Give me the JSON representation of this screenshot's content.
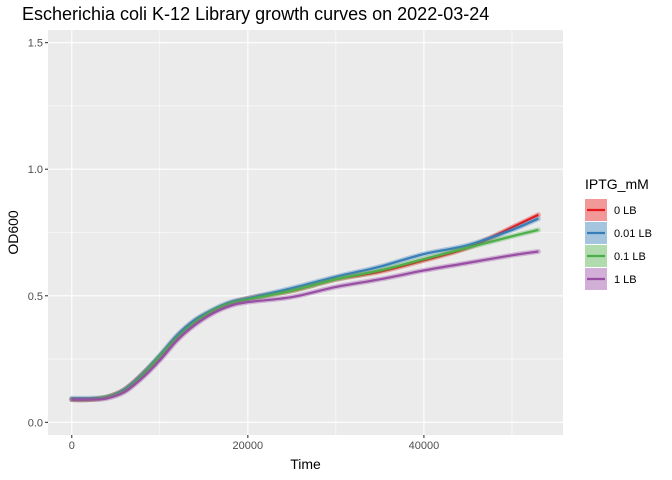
{
  "chart_data": {
    "type": "line",
    "title": "Escherichia coli K-12 Library growth curves on 2022-03-24",
    "xlabel": "Time",
    "ylabel": "OD600",
    "xlim": [
      -2700,
      55800
    ],
    "ylim": [
      -0.05,
      1.55
    ],
    "xticks": [
      0,
      20000,
      40000
    ],
    "xtick_labels": [
      "0",
      "20000",
      "40000"
    ],
    "yticks": [
      0.0,
      0.5,
      1.0,
      1.5
    ],
    "ytick_labels": [
      "0.0",
      "0.5",
      "1.0",
      "1.5"
    ],
    "grid": true,
    "legend": {
      "title": "IPTG_mM",
      "position": "right"
    },
    "x": [
      0,
      2000,
      4000,
      6000,
      8000,
      10000,
      12000,
      14000,
      16000,
      18000,
      20000,
      25000,
      30000,
      35000,
      40000,
      45000,
      50000,
      53000
    ],
    "series": [
      {
        "name": "0 LB",
        "color": "#e41a1c",
        "values": [
          0.09,
          0.09,
          0.1,
          0.13,
          0.19,
          0.26,
          0.34,
          0.4,
          0.44,
          0.47,
          0.49,
          0.52,
          0.565,
          0.595,
          0.64,
          0.69,
          0.77,
          0.82
        ]
      },
      {
        "name": "0.01 LB",
        "color": "#377eb8",
        "values": [
          0.095,
          0.095,
          0.1,
          0.13,
          0.19,
          0.265,
          0.345,
          0.405,
          0.445,
          0.475,
          0.49,
          0.53,
          0.575,
          0.615,
          0.665,
          0.7,
          0.76,
          0.805
        ]
      },
      {
        "name": "0.1 LB",
        "color": "#4daf4a",
        "values": [
          0.09,
          0.09,
          0.1,
          0.125,
          0.185,
          0.26,
          0.335,
          0.395,
          0.44,
          0.47,
          0.485,
          0.52,
          0.565,
          0.6,
          0.645,
          0.69,
          0.735,
          0.76
        ]
      },
      {
        "name": "1 LB",
        "color": "#984ea3",
        "values": [
          0.09,
          0.09,
          0.095,
          0.12,
          0.175,
          0.245,
          0.325,
          0.385,
          0.43,
          0.46,
          0.475,
          0.495,
          0.535,
          0.565,
          0.6,
          0.63,
          0.66,
          0.675
        ]
      }
    ]
  }
}
